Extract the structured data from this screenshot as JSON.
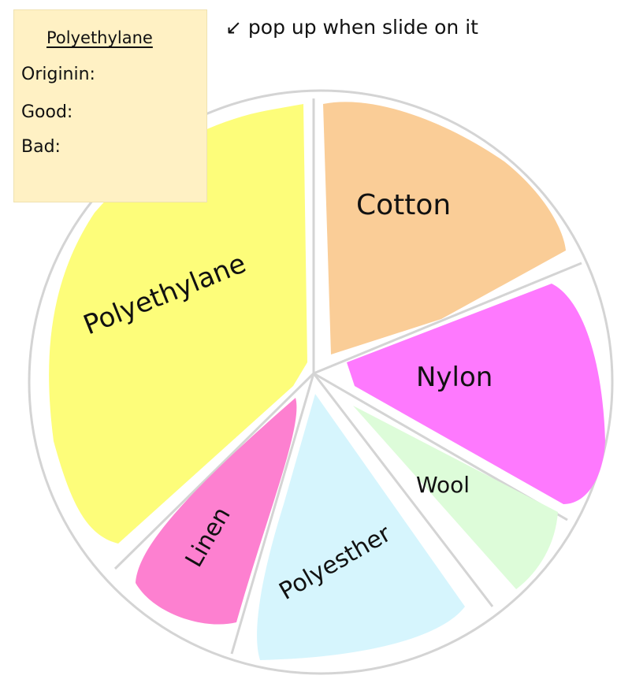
{
  "popup": {
    "title": "Polyethylane",
    "fields": [
      "Originin:",
      "Good:",
      "Bad:"
    ]
  },
  "note": {
    "arrow": "↙",
    "text": "pop up when slide on it"
  },
  "slices": [
    {
      "label": "Polyethylane",
      "color": "#fdfd7a"
    },
    {
      "label": "Cotton",
      "color": "#facd97"
    },
    {
      "label": "Nylon",
      "color": "#fe79fe"
    },
    {
      "label": "Wool",
      "color": "#ddfcd9"
    },
    {
      "label": "Polyesther",
      "color": "#d6f5fd"
    },
    {
      "label": "Linen",
      "color": "#fd80d0"
    }
  ],
  "colors": {
    "outline": "#d4d4d4"
  }
}
